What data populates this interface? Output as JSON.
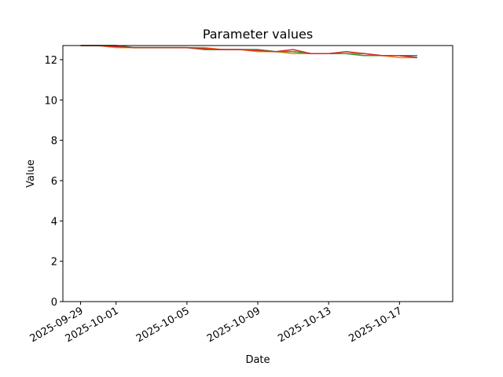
{
  "chart_data": {
    "type": "line",
    "title": "Parameter values",
    "x_label": "Date",
    "y_label": "Value",
    "x": [
      "2025-09-29",
      "2025-09-30",
      "2025-10-01",
      "2025-10-02",
      "2025-10-03",
      "2025-10-04",
      "2025-10-05",
      "2025-10-06",
      "2025-10-07",
      "2025-10-08",
      "2025-10-09",
      "2025-10-10",
      "2025-10-11",
      "2025-10-12",
      "2025-10-13",
      "2025-10-14",
      "2025-10-15",
      "2025-10-16",
      "2025-10-17",
      "2025-10-18"
    ],
    "series": [
      {
        "color": "#1f77b4",
        "values": [
          12.7,
          12.7,
          12.7,
          12.6,
          12.6,
          12.6,
          12.6,
          12.5,
          12.5,
          12.5,
          12.5,
          12.4,
          12.4,
          12.3,
          12.3,
          12.3,
          12.2,
          12.2,
          12.2,
          12.2
        ]
      },
      {
        "color": "#ff7f0e",
        "values": [
          12.7,
          12.7,
          12.6,
          12.6,
          12.6,
          12.6,
          12.6,
          12.6,
          12.5,
          12.5,
          12.4,
          12.4,
          12.3,
          12.3,
          12.3,
          12.3,
          12.3,
          12.2,
          12.1,
          12.1
        ]
      },
      {
        "color": "#2ca02c",
        "values": [
          12.7,
          12.7,
          12.7,
          12.6,
          12.6,
          12.6,
          12.6,
          12.5,
          12.5,
          12.5,
          12.5,
          12.4,
          12.4,
          12.3,
          12.3,
          12.3,
          12.2,
          12.2,
          12.2,
          12.1
        ]
      },
      {
        "color": "#d62728",
        "values": [
          12.7,
          12.7,
          12.65,
          12.6,
          12.6,
          12.6,
          12.6,
          12.55,
          12.5,
          12.5,
          12.45,
          12.4,
          12.5,
          12.3,
          12.3,
          12.4,
          12.3,
          12.2,
          12.2,
          12.1
        ]
      }
    ],
    "xlim": [
      "2025-09-28",
      "2025-10-20"
    ],
    "xticks": [
      "2025-09-29",
      "2025-10-01",
      "2025-10-05",
      "2025-10-09",
      "2025-10-13",
      "2025-10-17"
    ],
    "ylim": [
      0,
      12.7
    ],
    "yticks": [
      0,
      2,
      4,
      6,
      8,
      10,
      12
    ]
  }
}
